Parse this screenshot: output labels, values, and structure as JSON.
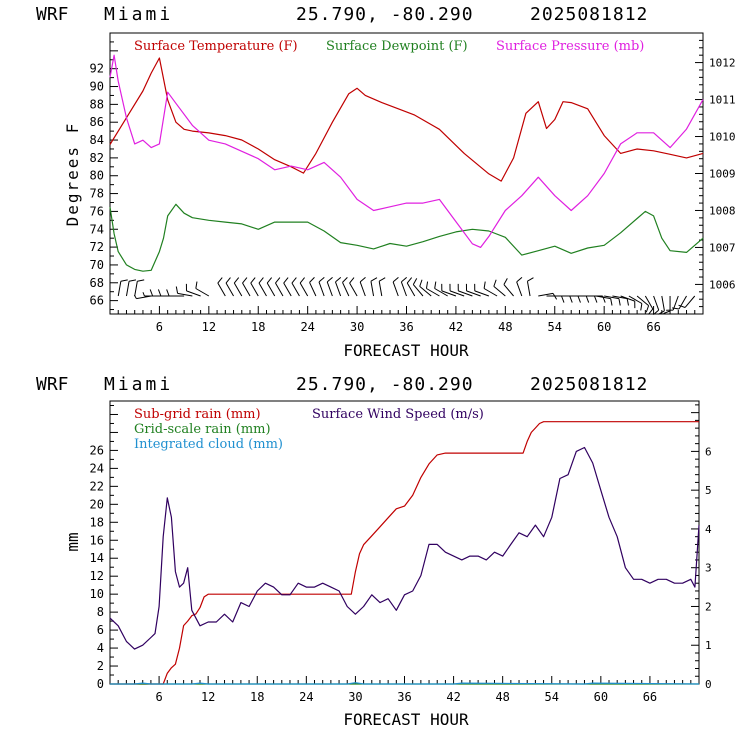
{
  "colors": {
    "temperature": "#c00000",
    "dewpoint": "#208020",
    "pressure": "#e020e0",
    "subgrid_rain": "#c00000",
    "gridscale_rain": "#208020",
    "integrated_cloud": "#2090d0",
    "wind_speed": "#300060",
    "wind_barbs": "#000000"
  },
  "chart_data": [
    {
      "type": "line",
      "header": {
        "model": "WRF",
        "location": "Miami",
        "coords": "25.790, -80.290",
        "run": "2025081812"
      },
      "xlabel": "FORECAST HOUR",
      "ylabel": "Degrees F",
      "xlim": [
        0,
        72
      ],
      "ylim": [
        64.5,
        96
      ],
      "y2lim": [
        1005.2,
        1012.8
      ],
      "xticks": [
        "6",
        "12",
        "18",
        "24",
        "30",
        "36",
        "42",
        "48",
        "54",
        "60",
        "66"
      ],
      "yticks": [
        "66",
        "68",
        "70",
        "72",
        "74",
        "76",
        "78",
        "80",
        "82",
        "84",
        "86",
        "88",
        "90",
        "92"
      ],
      "y2ticks": [
        "1006",
        "1007",
        "1008",
        "1009",
        "1010",
        "1011",
        "1012"
      ],
      "grid": false,
      "legend": "top",
      "series": [
        {
          "name": "Surface Temperature (F)",
          "axis": "left",
          "color_key": "temperature",
          "x": [
            0,
            2,
            4,
            5,
            6,
            7,
            8,
            9,
            10,
            12,
            14,
            16,
            18,
            20,
            22,
            23.5,
            25,
            27,
            29,
            30,
            31,
            33,
            35,
            37,
            40,
            43,
            46,
            47.5,
            49,
            50.5,
            52,
            53,
            54,
            55,
            56,
            58,
            60,
            62,
            64,
            66,
            68,
            70,
            72
          ],
          "y": [
            83.5,
            86.5,
            89.5,
            91.5,
            93.2,
            88.5,
            86,
            85.2,
            85,
            84.8,
            84.5,
            84,
            83,
            81.8,
            81,
            80.3,
            82.5,
            86,
            89.2,
            89.8,
            89,
            88.2,
            87.5,
            86.8,
            85.2,
            82.5,
            80.2,
            79.4,
            82,
            87,
            88.3,
            85.3,
            86.3,
            88.3,
            88.2,
            87.5,
            84.5,
            82.5,
            83,
            82.8,
            82.4,
            82,
            82.5
          ]
        },
        {
          "name": "Surface Dewpoint (F)",
          "axis": "left",
          "color_key": "dewpoint",
          "x": [
            0,
            0.5,
            1,
            2,
            3,
            4,
            5,
            6,
            6.5,
            7,
            8,
            9,
            10,
            12,
            14,
            16,
            18,
            20,
            22,
            24,
            26,
            28,
            30,
            32,
            34,
            36,
            38,
            40,
            42,
            44,
            46,
            48,
            50,
            52,
            54,
            56,
            58,
            60,
            62,
            64,
            65,
            66,
            67,
            68,
            70,
            72
          ],
          "y": [
            76.5,
            73.5,
            71.5,
            70,
            69.5,
            69.3,
            69.4,
            71.5,
            73,
            75.5,
            76.8,
            75.8,
            75.3,
            75,
            74.8,
            74.6,
            74,
            74.8,
            74.8,
            74.8,
            73.8,
            72.5,
            72.2,
            71.8,
            72.4,
            72.1,
            72.6,
            73.2,
            73.7,
            74,
            73.8,
            73.1,
            71.1,
            71.6,
            72.1,
            71.3,
            71.9,
            72.2,
            73.6,
            75.2,
            76,
            75.5,
            73,
            71.6,
            71.4,
            73
          ]
        },
        {
          "name": "Surface Pressure (mb)",
          "axis": "right",
          "color_key": "pressure",
          "x": [
            0,
            0.5,
            1,
            2,
            3,
            4,
            5,
            6,
            7,
            8,
            10,
            12,
            14,
            16,
            18,
            20,
            22,
            24,
            26,
            28,
            30,
            32,
            34,
            36,
            38,
            40,
            42,
            44,
            45,
            46,
            48,
            50,
            52,
            54,
            56,
            58,
            60,
            62,
            64,
            66,
            68,
            70,
            72
          ],
          "y": [
            1011.6,
            1012.2,
            1011.5,
            1010.5,
            1009.8,
            1009.9,
            1009.7,
            1009.8,
            1011.2,
            1010.9,
            1010.3,
            1009.9,
            1009.8,
            1009.6,
            1009.4,
            1009.1,
            1009.2,
            1009.1,
            1009.3,
            1008.9,
            1008.3,
            1008,
            1008.1,
            1008.2,
            1008.2,
            1008.3,
            1007.7,
            1007.1,
            1007.0,
            1007.3,
            1008,
            1008.4,
            1008.9,
            1008.4,
            1008.0,
            1008.4,
            1009,
            1009.8,
            1010.1,
            1010.1,
            1009.7,
            1010.2,
            1011
          ]
        }
      ],
      "wind_barbs": {
        "x": [
          1,
          2,
          3,
          5,
          6,
          7,
          8,
          9,
          10,
          11,
          12,
          14,
          15,
          16,
          17,
          18,
          19,
          20,
          21,
          22,
          23,
          24,
          25,
          26,
          27,
          28,
          29,
          30,
          31,
          32,
          33,
          35,
          36,
          37,
          38,
          39,
          40,
          41,
          42,
          43,
          44,
          45,
          46,
          47,
          48,
          49,
          50,
          51,
          52,
          53,
          54,
          55,
          56,
          57,
          58,
          59,
          60,
          61,
          62,
          63,
          64,
          65,
          66,
          67,
          68,
          69,
          70,
          71
        ],
        "direction_deg": [
          10,
          10,
          10,
          260,
          270,
          270,
          270,
          270,
          280,
          290,
          300,
          330,
          330,
          330,
          330,
          330,
          330,
          330,
          330,
          330,
          330,
          330,
          335,
          340,
          340,
          340,
          335,
          330,
          340,
          350,
          350,
          340,
          340,
          330,
          320,
          310,
          300,
          300,
          290,
          290,
          290,
          290,
          290,
          300,
          310,
          320,
          340,
          350,
          80,
          90,
          90,
          90,
          90,
          90,
          90,
          100,
          100,
          100,
          110,
          120,
          130,
          150,
          160,
          170,
          180,
          200,
          210,
          220
        ],
        "speed_kt": [
          10,
          10,
          10,
          5,
          5,
          10,
          10,
          10,
          10,
          10,
          10,
          10,
          10,
          10,
          10,
          10,
          10,
          10,
          10,
          10,
          10,
          10,
          10,
          10,
          10,
          10,
          10,
          10,
          10,
          10,
          10,
          10,
          10,
          10,
          10,
          10,
          10,
          10,
          10,
          10,
          10,
          10,
          10,
          10,
          10,
          10,
          10,
          10,
          10,
          10,
          10,
          10,
          10,
          10,
          10,
          10,
          10,
          10,
          10,
          10,
          10,
          10,
          10,
          10,
          10,
          10,
          10,
          10
        ]
      }
    },
    {
      "type": "line",
      "header": {
        "model": "WRF",
        "location": "Miami",
        "coords": "25.790, -80.290",
        "run": "2025081812"
      },
      "xlabel": "FORECAST HOUR",
      "ylabel": "mm",
      "xlim": [
        0,
        72
      ],
      "ylim": [
        0,
        31.5
      ],
      "y2lim": [
        0,
        7.3
      ],
      "xticks": [
        "6",
        "12",
        "18",
        "24",
        "30",
        "36",
        "42",
        "48",
        "54",
        "60",
        "66"
      ],
      "yticks": [
        "0",
        "2",
        "4",
        "6",
        "8",
        "10",
        "12",
        "14",
        "16",
        "18",
        "20",
        "22",
        "24",
        "26"
      ],
      "y2ticks": [
        "0",
        "1",
        "2",
        "3",
        "4",
        "5",
        "6"
      ],
      "grid": false,
      "legend": "top-left",
      "series": [
        {
          "name": "Sub-grid rain (mm)",
          "axis": "left",
          "color_key": "subgrid_rain",
          "x": [
            0,
            6.5,
            7,
            7.5,
            8,
            8.5,
            9,
            9.5,
            10,
            10.5,
            11,
            11.5,
            12,
            29.5,
            30,
            30.5,
            31,
            32,
            33,
            34,
            35,
            36,
            37,
            38,
            39,
            40,
            41,
            50.5,
            51,
            51.5,
            52,
            52.5,
            53,
            72
          ],
          "y": [
            0,
            0,
            1.2,
            1.8,
            2.2,
            4,
            6.5,
            7,
            7.6,
            7.8,
            8.5,
            9.7,
            10,
            10,
            12.5,
            14.5,
            15.5,
            16.5,
            17.5,
            18.5,
            19.5,
            19.8,
            21,
            23,
            24.5,
            25.5,
            25.7,
            25.7,
            27,
            28,
            28.5,
            29,
            29.2,
            29.2
          ]
        },
        {
          "name": "Grid-scale rain (mm)",
          "axis": "left",
          "color_key": "gridscale_rain",
          "x": [
            0,
            72
          ],
          "y": [
            0,
            0
          ]
        },
        {
          "name": "Integrated cloud (mm)",
          "axis": "left",
          "color_key": "integrated_cloud",
          "x": [
            0,
            3,
            4,
            5,
            10,
            11,
            12,
            29,
            30,
            31,
            42,
            43,
            58,
            59,
            72
          ],
          "y": [
            0,
            0,
            0.1,
            0,
            0,
            0.1,
            0,
            0,
            0.15,
            0,
            0,
            0.1,
            0,
            0.1,
            0
          ]
        },
        {
          "name": "Surface Wind Speed (m/s)",
          "axis": "right",
          "color_key": "wind_speed",
          "x": [
            0,
            1,
            2,
            3,
            4,
            5,
            5.5,
            6,
            6.5,
            7,
            7.5,
            8,
            8.5,
            9,
            9.5,
            10,
            11,
            12,
            13,
            14,
            15,
            16,
            17,
            18,
            19,
            20,
            21,
            22,
            23,
            24,
            25,
            26,
            27,
            28,
            29,
            30,
            31,
            32,
            33,
            34,
            35,
            36,
            37,
            38,
            39,
            40,
            41,
            42,
            43,
            44,
            45,
            46,
            47,
            48,
            49,
            50,
            51,
            52,
            53,
            54,
            55,
            56,
            57,
            58,
            59,
            60,
            61,
            62,
            63,
            64,
            65,
            66,
            67,
            68,
            69,
            70,
            71,
            71.5,
            72
          ],
          "y": [
            1.7,
            1.5,
            1.1,
            0.9,
            1.0,
            1.2,
            1.3,
            2.0,
            3.8,
            4.8,
            4.3,
            2.9,
            2.5,
            2.6,
            3.0,
            1.9,
            1.5,
            1.6,
            1.6,
            1.8,
            1.6,
            2.1,
            2.0,
            2.4,
            2.6,
            2.5,
            2.3,
            2.3,
            2.6,
            2.5,
            2.5,
            2.6,
            2.5,
            2.4,
            2.0,
            1.8,
            2.0,
            2.3,
            2.1,
            2.2,
            1.9,
            2.3,
            2.4,
            2.8,
            3.6,
            3.6,
            3.4,
            3.3,
            3.2,
            3.3,
            3.3,
            3.2,
            3.4,
            3.3,
            3.6,
            3.9,
            3.8,
            4.1,
            3.8,
            4.3,
            5.3,
            5.4,
            6.0,
            6.1,
            5.7,
            5.0,
            4.3,
            3.8,
            3.0,
            2.7,
            2.7,
            2.6,
            2.7,
            2.7,
            2.6,
            2.6,
            2.7,
            2.5,
            4.1
          ]
        }
      ]
    }
  ]
}
